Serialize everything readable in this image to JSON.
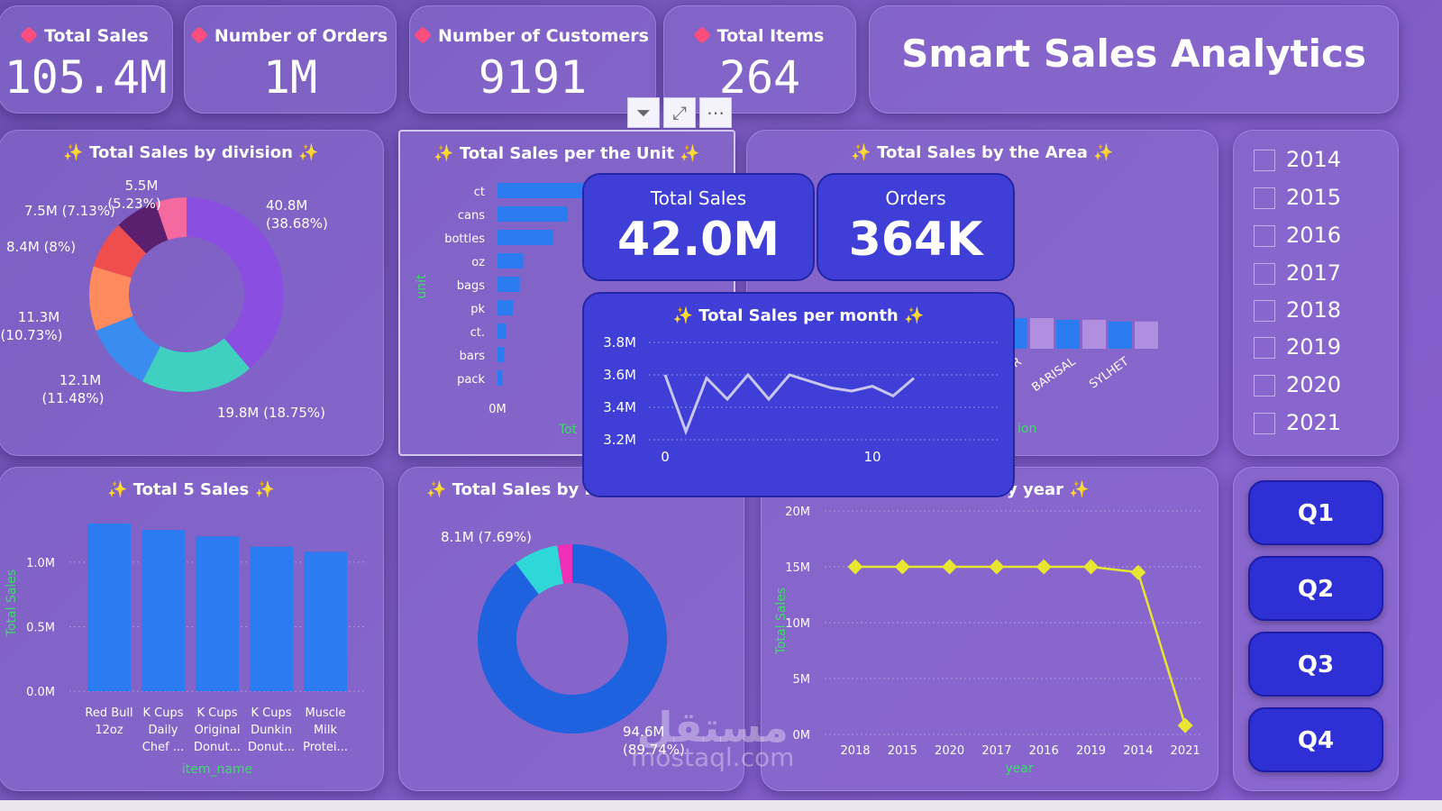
{
  "kpis": [
    {
      "label": "Total Sales",
      "value": "105.4M"
    },
    {
      "label": "Number of Orders",
      "value": "1M"
    },
    {
      "label": "Number of Customers",
      "value": "9191"
    },
    {
      "label": "Total Items",
      "value": "264"
    }
  ],
  "app_title": "Smart Sales Analytics",
  "spark_icon": "sparkle-icon",
  "colors": {
    "accent": "#2f2fd6",
    "kpi_dot": "#ff4d7e",
    "line": "#e8e630",
    "bars": "#2b7cf0"
  },
  "division": {
    "title": "Total Sales by division",
    "labels": [
      "5.5M",
      "(5.23%)",
      "7.5M (7.13%)",
      "8.4M (8%)",
      "11.3M",
      "(10.73%)",
      "12.1M",
      "(11.48%)",
      "19.8M (18.75%)",
      "40.8M",
      "(38.68%)"
    ]
  },
  "unit": {
    "title": "Total Sales per the Unit",
    "ylabel": "unit",
    "zero_tick": "0M",
    "xlabel_partial": "Tot"
  },
  "area": {
    "title": "Total Sales by the Area",
    "xlabel_partial": "ion",
    "categories": [
      "ANGPUR",
      "BARISAL",
      "SYLHET"
    ]
  },
  "years": [
    "2014",
    "2015",
    "2016",
    "2017",
    "2018",
    "2019",
    "2020",
    "2021"
  ],
  "top5": {
    "title": "Total 5 Sales",
    "ylabel": "Total Sales",
    "xlabel": "item_name",
    "items": [
      [
        "Red Bull",
        "12oz"
      ],
      [
        "K Cups",
        "Daily",
        "Chef ..."
      ],
      [
        "K Cups",
        "Original",
        "Donut..."
      ],
      [
        "K Cups",
        "Dunkin",
        "Donut..."
      ],
      [
        "Muscle",
        "Milk",
        "Protei..."
      ]
    ]
  },
  "payment": {
    "title": "Total Sales by P",
    "labels": [
      "8.1M (7.69%)",
      "94.6M",
      "(89.74%)"
    ]
  },
  "year_chart": {
    "title": "y year",
    "ylabel": "Total Sales",
    "xlabel": "year"
  },
  "quarters": [
    "Q1",
    "Q2",
    "Q3",
    "Q4"
  ],
  "tooltip": {
    "sales_label": "Total Sales",
    "sales_value": "42.0M",
    "orders_label": "Orders",
    "orders_value": "364K",
    "month_title": "Total Sales per month"
  },
  "toolbar": {
    "filter_icon": "filter-icon",
    "focus_icon": "focus-mode-icon",
    "more_icon": "more-options-icon"
  },
  "watermark": {
    "line1": "مستقل",
    "line2": "mostaql.com"
  },
  "chart_data": [
    {
      "type": "pie",
      "title": "Total Sales by division",
      "slices": [
        {
          "value": 40.8,
          "percent": 38.68,
          "color": "#8a4fe0"
        },
        {
          "value": 19.8,
          "percent": 18.75,
          "color": "#3fd0c0"
        },
        {
          "value": 12.1,
          "percent": 11.48,
          "color": "#3a8cf0"
        },
        {
          "value": 11.3,
          "percent": 10.73,
          "color": "#ff8a5c"
        },
        {
          "value": 8.4,
          "percent": 8.0,
          "color": "#f04e4e"
        },
        {
          "value": 7.5,
          "percent": 7.13,
          "color": "#5a1f6e"
        },
        {
          "value": 5.5,
          "percent": 5.23,
          "color": "#f46aa0"
        }
      ]
    },
    {
      "type": "bar",
      "title": "Total Sales per the Unit",
      "categories": [
        "ct",
        "cans",
        "bottles",
        "oz",
        "bags",
        "pk",
        "ct.",
        "bars",
        "pack"
      ],
      "values": [
        100,
        82,
        65,
        30,
        26,
        18,
        10,
        8,
        6
      ]
    },
    {
      "type": "bar",
      "title": "Total Sales by the Area",
      "categories": [
        "ANGPUR",
        "BARISAL",
        "SYLHET"
      ],
      "values": [
        0.9,
        0.85,
        0.8
      ]
    },
    {
      "type": "bar",
      "title": "Total 5 Sales",
      "ylabel": "Total Sales",
      "xlabel": "item_name",
      "categories": [
        "Red Bull 12oz",
        "K Cups Daily Chef ...",
        "K Cups Original Donut...",
        "K Cups Dunkin Donut...",
        "Muscle Milk Protei..."
      ],
      "values": [
        1.3,
        1.25,
        1.2,
        1.12,
        1.08
      ],
      "yticks": [
        "0.0M",
        "0.5M",
        "1.0M"
      ],
      "ylim": [
        0,
        1.3
      ]
    },
    {
      "type": "pie",
      "title": "Total Sales by P",
      "slices": [
        {
          "value": 94.6,
          "percent": 89.74,
          "color": "#1f62e0"
        },
        {
          "value": 8.1,
          "percent": 7.69,
          "color": "#2fd8d8"
        },
        {
          "value": 2.7,
          "percent": 2.57,
          "color": "#f02fb8"
        }
      ]
    },
    {
      "type": "line",
      "title": "y year",
      "ylabel": "Total Sales",
      "xlabel": "year",
      "x": [
        "2018",
        "2015",
        "2020",
        "2017",
        "2016",
        "2019",
        "2014",
        "2021"
      ],
      "values": [
        15,
        15,
        15,
        15,
        15,
        15,
        14.5,
        0.8
      ],
      "yticks": [
        "0M",
        "5M",
        "10M",
        "15M",
        "20M"
      ],
      "ylim": [
        0,
        20
      ]
    },
    {
      "type": "line",
      "title": "Total Sales per month",
      "x": [
        0,
        1,
        2,
        3,
        4,
        5,
        6,
        7,
        8,
        9,
        10,
        11,
        12
      ],
      "values": [
        3.6,
        3.25,
        3.58,
        3.45,
        3.6,
        3.45,
        3.6,
        3.56,
        3.52,
        3.5,
        3.53,
        3.47,
        3.58
      ],
      "yticks": [
        "3.2M",
        "3.4M",
        "3.6M",
        "3.8M"
      ],
      "xticks": [
        "0",
        "10"
      ],
      "ylim": [
        3.2,
        3.8
      ]
    }
  ]
}
